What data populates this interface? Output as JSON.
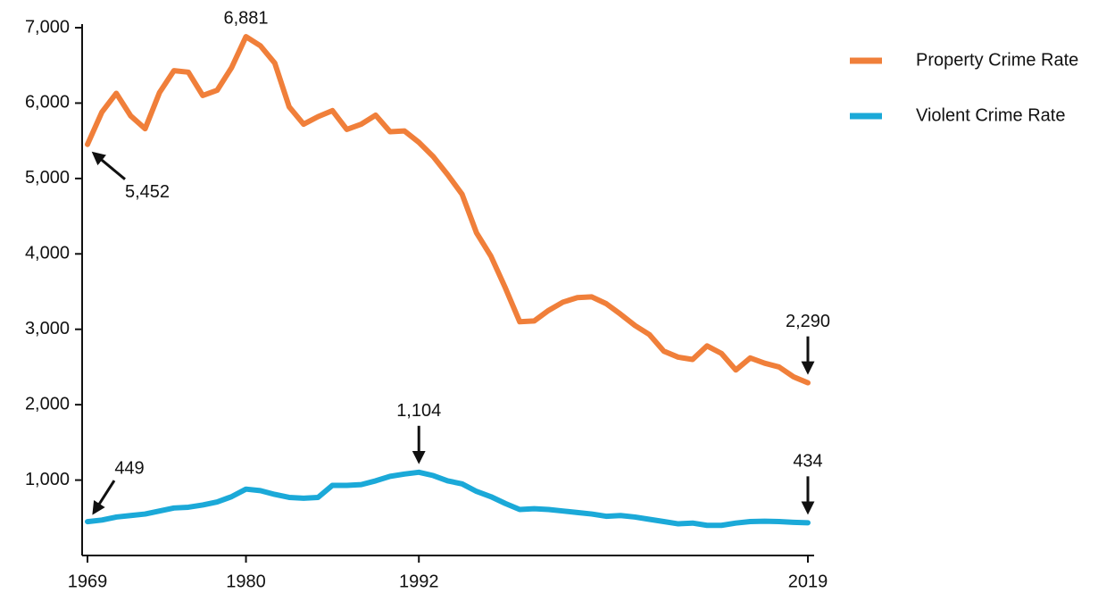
{
  "chart_data": {
    "type": "line",
    "x": [
      1969,
      1970,
      1971,
      1972,
      1973,
      1974,
      1975,
      1976,
      1977,
      1978,
      1979,
      1980,
      1981,
      1982,
      1983,
      1984,
      1985,
      1986,
      1987,
      1988,
      1989,
      1990,
      1991,
      1992,
      1993,
      1994,
      1995,
      1996,
      1997,
      1998,
      1999,
      2000,
      2001,
      2002,
      2003,
      2004,
      2005,
      2006,
      2007,
      2008,
      2009,
      2010,
      2011,
      2012,
      2013,
      2014,
      2015,
      2016,
      2017,
      2018,
      2019
    ],
    "series": [
      {
        "name": "Property Crime Rate",
        "color": "#f07f3a",
        "values": [
          5452,
          5880,
          6130,
          5830,
          5660,
          6140,
          6430,
          6410,
          6100,
          6170,
          6470,
          6881,
          6760,
          6530,
          5950,
          5720,
          5820,
          5900,
          5650,
          5720,
          5840,
          5620,
          5630,
          5480,
          5290,
          5050,
          4790,
          4280,
          3970,
          3550,
          3100,
          3110,
          3250,
          3360,
          3420,
          3430,
          3340,
          3200,
          3050,
          2930,
          2710,
          2630,
          2600,
          2780,
          2680,
          2460,
          2620,
          2550,
          2500,
          2370,
          2290
        ],
        "value_labels": [
          "5,452",
          null,
          null,
          null,
          null,
          null,
          null,
          null,
          null,
          null,
          null,
          "6,881",
          null,
          null,
          null,
          null,
          null,
          null,
          null,
          null,
          null,
          null,
          null,
          null,
          null,
          null,
          null,
          null,
          null,
          null,
          null,
          null,
          null,
          null,
          null,
          null,
          null,
          null,
          null,
          null,
          null,
          null,
          null,
          null,
          null,
          null,
          null,
          null,
          null,
          null,
          "2,290"
        ]
      },
      {
        "name": "Violent Crime Rate",
        "color": "#1ba9d8",
        "values": [
          449,
          470,
          510,
          530,
          550,
          590,
          630,
          640,
          670,
          710,
          780,
          880,
          860,
          810,
          770,
          760,
          770,
          930,
          930,
          940,
          990,
          1050,
          1080,
          1104,
          1060,
          990,
          950,
          850,
          780,
          690,
          610,
          620,
          610,
          590,
          570,
          550,
          520,
          530,
          510,
          480,
          450,
          420,
          430,
          400,
          400,
          430,
          450,
          455,
          450,
          440,
          434
        ],
        "value_labels": [
          "449",
          null,
          null,
          null,
          null,
          null,
          null,
          null,
          null,
          null,
          null,
          null,
          null,
          null,
          null,
          null,
          null,
          null,
          null,
          null,
          null,
          null,
          null,
          "1,104",
          null,
          null,
          null,
          null,
          null,
          null,
          null,
          null,
          null,
          null,
          null,
          null,
          null,
          null,
          null,
          null,
          null,
          null,
          null,
          null,
          null,
          null,
          null,
          null,
          null,
          null,
          "434"
        ]
      }
    ],
    "xlim": [
      1969,
      2019
    ],
    "xticks": [
      1969,
      1980,
      1992,
      2019
    ],
    "ylim": [
      0,
      7000
    ],
    "yticks": [
      {
        "value": 1000,
        "label": "1,000"
      },
      {
        "value": 2000,
        "label": "2,000"
      },
      {
        "value": 3000,
        "label": "3,000"
      },
      {
        "value": 4000,
        "label": "4,000"
      },
      {
        "value": 5000,
        "label": "5,000"
      },
      {
        "value": 6000,
        "label": "6,000"
      },
      {
        "value": 7000,
        "label": "7,000"
      }
    ],
    "legend": "top-right"
  }
}
